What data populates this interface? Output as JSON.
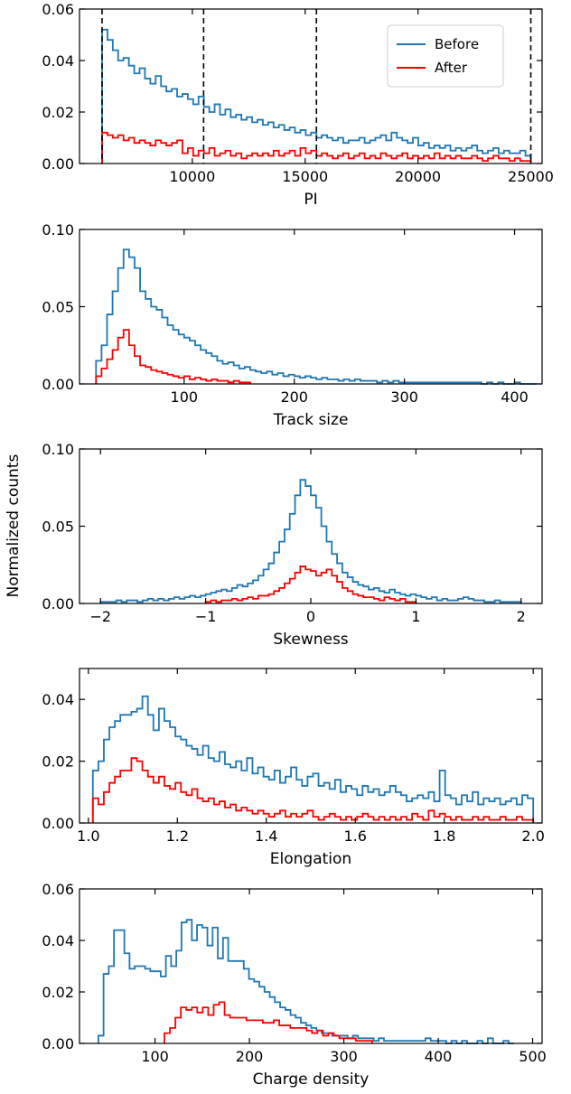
{
  "figure": {
    "ylabel": "Normalized counts"
  },
  "colors": {
    "before": "#1f77b4",
    "after": "#ff0000",
    "threshold": "#000000"
  },
  "legend": {
    "placement": "top-right of first panel",
    "entries": [
      {
        "label": "Before",
        "color": "#1f77b4"
      },
      {
        "label": "After",
        "color": "#ff0000"
      }
    ]
  },
  "chart_data": [
    {
      "type": "histogram-step",
      "xlabel": "PI",
      "xlim": [
        5000,
        25500
      ],
      "ylim": [
        0,
        0.06
      ],
      "xticks": [
        10000,
        15000,
        20000,
        25000
      ],
      "xtick_labels": [
        "10000",
        "15000",
        "20000",
        "25000"
      ],
      "yticks": [
        0,
        0.02,
        0.04,
        0.06
      ],
      "ytick_labels": [
        "0.00",
        "0.02",
        "0.04",
        "0.06"
      ],
      "vlines": [
        6000,
        10500,
        15500,
        25000
      ],
      "series": [
        {
          "name": "Before",
          "bins": [
            6000,
            25000
          ],
          "values": [
            0.052,
            0.048,
            0.044,
            0.04,
            0.041,
            0.038,
            0.035,
            0.037,
            0.033,
            0.031,
            0.034,
            0.03,
            0.028,
            0.029,
            0.026,
            0.027,
            0.025,
            0.023,
            0.026,
            0.022,
            0.02,
            0.023,
            0.019,
            0.021,
            0.018,
            0.019,
            0.017,
            0.018,
            0.016,
            0.017,
            0.015,
            0.016,
            0.014,
            0.015,
            0.013,
            0.014,
            0.012,
            0.013,
            0.011,
            0.012,
            0.01,
            0.011,
            0.01,
            0.009,
            0.01,
            0.008,
            0.009,
            0.009,
            0.01,
            0.008,
            0.009,
            0.01,
            0.011,
            0.009,
            0.012,
            0.01,
            0.009,
            0.008,
            0.01,
            0.007,
            0.008,
            0.006,
            0.007,
            0.006,
            0.007,
            0.005,
            0.006,
            0.005,
            0.006,
            0.007,
            0.005,
            0.004,
            0.005,
            0.006,
            0.004,
            0.005,
            0.004,
            0.004,
            0.005,
            0.003
          ]
        },
        {
          "name": "After",
          "bins": [
            6000,
            25000
          ],
          "values": [
            0.012,
            0.011,
            0.01,
            0.011,
            0.009,
            0.01,
            0.008,
            0.009,
            0.008,
            0.007,
            0.009,
            0.008,
            0.007,
            0.008,
            0.009,
            0.004,
            0.006,
            0.003,
            0.005,
            0.004,
            0.006,
            0.003,
            0.004,
            0.005,
            0.003,
            0.004,
            0.002,
            0.003,
            0.004,
            0.003,
            0.004,
            0.003,
            0.005,
            0.003,
            0.004,
            0.005,
            0.003,
            0.006,
            0.004,
            0.005,
            0.003,
            0.004,
            0.003,
            0.002,
            0.003,
            0.004,
            0.002,
            0.003,
            0.004,
            0.002,
            0.003,
            0.002,
            0.004,
            0.003,
            0.002,
            0.003,
            0.004,
            0.002,
            0.003,
            0.002,
            0.003,
            0.002,
            0.004,
            0.002,
            0.003,
            0.002,
            0.003,
            0.002,
            0.002,
            0.003,
            0.002,
            0.001,
            0.002,
            0.003,
            0.002,
            0.002,
            0.001,
            0.002,
            0.001,
            0.001
          ]
        }
      ]
    },
    {
      "type": "histogram-step",
      "xlabel": "Track size",
      "xlim": [
        5,
        425
      ],
      "ylim": [
        0,
        0.1
      ],
      "xticks": [
        100,
        200,
        300,
        400
      ],
      "xtick_labels": [
        "100",
        "200",
        "300",
        "400"
      ],
      "yticks": [
        0,
        0.05,
        0.1
      ],
      "ytick_labels": [
        "0.00",
        "0.05",
        "0.10"
      ],
      "series": [
        {
          "name": "Before",
          "bins": [
            20,
            420
          ],
          "values": [
            0.015,
            0.025,
            0.045,
            0.06,
            0.075,
            0.087,
            0.082,
            0.075,
            0.06,
            0.055,
            0.05,
            0.048,
            0.043,
            0.038,
            0.035,
            0.032,
            0.03,
            0.028,
            0.025,
            0.022,
            0.02,
            0.018,
            0.015,
            0.013,
            0.014,
            0.012,
            0.01,
            0.011,
            0.009,
            0.008,
            0.007,
            0.008,
            0.006,
            0.007,
            0.005,
            0.006,
            0.005,
            0.004,
            0.005,
            0.004,
            0.003,
            0.004,
            0.003,
            0.003,
            0.002,
            0.003,
            0.002,
            0.003,
            0.002,
            0.002,
            0.002,
            0.001,
            0.002,
            0.001,
            0.002,
            0.001,
            0.001,
            0.001,
            0.001,
            0.001,
            0.001,
            0.001,
            0.001,
            0.001,
            0.001,
            0.001,
            0.001,
            0.001,
            0.001,
            0.001,
            0.0,
            0.001,
            0.0,
            0.001,
            0.0,
            0.0,
            0.001,
            0.0,
            0.0,
            0.0
          ]
        },
        {
          "name": "After",
          "bins": [
            20,
            160
          ],
          "values": [
            0.005,
            0.01,
            0.016,
            0.022,
            0.03,
            0.035,
            0.025,
            0.018,
            0.012,
            0.011,
            0.009,
            0.008,
            0.007,
            0.006,
            0.005,
            0.004,
            0.005,
            0.003,
            0.004,
            0.003,
            0.002,
            0.003,
            0.002,
            0.002,
            0.001,
            0.002,
            0.001,
            0.001
          ]
        }
      ]
    },
    {
      "type": "histogram-step",
      "xlabel": "Skewness",
      "xlim": [
        -2.2,
        2.2
      ],
      "ylim": [
        0,
        0.1
      ],
      "xticks": [
        -2,
        -1,
        0,
        1,
        2
      ],
      "xtick_labels": [
        "−2",
        "−1",
        "0",
        "1",
        "2"
      ],
      "yticks": [
        0,
        0.05,
        0.1
      ],
      "ytick_labels": [
        "0.00",
        "0.05",
        "0.10"
      ],
      "series": [
        {
          "name": "Before",
          "bins": [
            -2,
            2
          ],
          "values": [
            0.001,
            0.001,
            0.001,
            0.002,
            0.001,
            0.002,
            0.002,
            0.001,
            0.002,
            0.003,
            0.002,
            0.003,
            0.002,
            0.003,
            0.004,
            0.003,
            0.004,
            0.005,
            0.004,
            0.005,
            0.006,
            0.007,
            0.008,
            0.009,
            0.008,
            0.01,
            0.012,
            0.011,
            0.013,
            0.015,
            0.018,
            0.022,
            0.026,
            0.033,
            0.04,
            0.048,
            0.058,
            0.07,
            0.08,
            0.076,
            0.07,
            0.062,
            0.05,
            0.04,
            0.032,
            0.026,
            0.02,
            0.017,
            0.014,
            0.012,
            0.011,
            0.009,
            0.01,
            0.008,
            0.007,
            0.009,
            0.007,
            0.006,
            0.005,
            0.006,
            0.005,
            0.004,
            0.003,
            0.004,
            0.002,
            0.003,
            0.002,
            0.002,
            0.003,
            0.004,
            0.003,
            0.002,
            0.002,
            0.001,
            0.001,
            0.002,
            0.001,
            0.001,
            0.001,
            0.001
          ]
        },
        {
          "name": "After",
          "bins": [
            -1,
            1
          ],
          "values": [
            0.001,
            0.002,
            0.001,
            0.002,
            0.002,
            0.003,
            0.002,
            0.003,
            0.004,
            0.003,
            0.005,
            0.005,
            0.006,
            0.008,
            0.01,
            0.013,
            0.016,
            0.02,
            0.024,
            0.022,
            0.021,
            0.018,
            0.02,
            0.022,
            0.018,
            0.014,
            0.01,
            0.008,
            0.006,
            0.005,
            0.004,
            0.004,
            0.003,
            0.002,
            0.004,
            0.003,
            0.002,
            0.003,
            0.001,
            0.001
          ]
        }
      ]
    },
    {
      "type": "histogram-step",
      "xlabel": "Elongation",
      "xlim": [
        0.98,
        2.02
      ],
      "ylim": [
        0,
        0.05
      ],
      "xticks": [
        1.0,
        1.2,
        1.4,
        1.6,
        1.8,
        2.0
      ],
      "xtick_labels": [
        "1.0",
        "1.2",
        "1.4",
        "1.6",
        "1.8",
        "2.0"
      ],
      "yticks": [
        0,
        0.02,
        0.04
      ],
      "ytick_labels": [
        "0.00",
        "0.02",
        "0.04"
      ],
      "series": [
        {
          "name": "Before",
          "bins": [
            1.01,
            2.0
          ],
          "values": [
            0.017,
            0.02,
            0.027,
            0.031,
            0.033,
            0.035,
            0.035,
            0.036,
            0.037,
            0.041,
            0.035,
            0.03,
            0.037,
            0.033,
            0.031,
            0.028,
            0.027,
            0.025,
            0.024,
            0.022,
            0.025,
            0.021,
            0.02,
            0.023,
            0.019,
            0.018,
            0.02,
            0.017,
            0.021,
            0.016,
            0.018,
            0.015,
            0.014,
            0.017,
            0.013,
            0.015,
            0.018,
            0.014,
            0.012,
            0.015,
            0.016,
            0.012,
            0.013,
            0.011,
            0.014,
            0.01,
            0.012,
            0.011,
            0.009,
            0.012,
            0.01,
            0.011,
            0.009,
            0.01,
            0.012,
            0.01,
            0.009,
            0.007,
            0.008,
            0.009,
            0.008,
            0.01,
            0.007,
            0.017,
            0.009,
            0.008,
            0.006,
            0.009,
            0.007,
            0.01,
            0.006,
            0.008,
            0.007,
            0.008,
            0.006,
            0.007,
            0.008,
            0.006,
            0.009,
            0.008
          ]
        },
        {
          "name": "After",
          "bins": [
            1.01,
            2.0
          ],
          "values": [
            0.008,
            0.006,
            0.01,
            0.013,
            0.015,
            0.017,
            0.017,
            0.021,
            0.02,
            0.017,
            0.015,
            0.013,
            0.015,
            0.012,
            0.011,
            0.013,
            0.01,
            0.009,
            0.011,
            0.008,
            0.007,
            0.008,
            0.006,
            0.007,
            0.005,
            0.006,
            0.004,
            0.005,
            0.004,
            0.003,
            0.004,
            0.003,
            0.002,
            0.003,
            0.004,
            0.002,
            0.003,
            0.002,
            0.003,
            0.004,
            0.002,
            0.001,
            0.002,
            0.003,
            0.002,
            0.001,
            0.002,
            0.001,
            0.002,
            0.003,
            0.002,
            0.001,
            0.002,
            0.001,
            0.002,
            0.001,
            0.002,
            0.001,
            0.003,
            0.002,
            0.001,
            0.004,
            0.002,
            0.003,
            0.002,
            0.001,
            0.002,
            0.001,
            0.001,
            0.002,
            0.001,
            0.002,
            0.001,
            0.001,
            0.002,
            0.001,
            0.001,
            0.002,
            0.001,
            0.001
          ]
        }
      ]
    },
    {
      "type": "histogram-step",
      "xlabel": "Charge density",
      "xlim": [
        20,
        510
      ],
      "ylim": [
        0,
        0.06
      ],
      "xticks": [
        100,
        200,
        300,
        400,
        500
      ],
      "xtick_labels": [
        "100",
        "200",
        "300",
        "400",
        "500"
      ],
      "yticks": [
        0,
        0.02,
        0.04,
        0.06
      ],
      "ytick_labels": [
        "0.00",
        "0.02",
        "0.04",
        "0.06"
      ],
      "series": [
        {
          "name": "Before",
          "bins": [
            40,
            480
          ],
          "values": [
            0.003,
            0.027,
            0.03,
            0.044,
            0.044,
            0.035,
            0.029,
            0.03,
            0.03,
            0.029,
            0.028,
            0.028,
            0.026,
            0.034,
            0.03,
            0.036,
            0.047,
            0.048,
            0.04,
            0.046,
            0.045,
            0.038,
            0.045,
            0.033,
            0.041,
            0.032,
            0.032,
            0.032,
            0.029,
            0.025,
            0.024,
            0.022,
            0.02,
            0.018,
            0.016,
            0.014,
            0.013,
            0.011,
            0.01,
            0.008,
            0.007,
            0.006,
            0.005,
            0.004,
            0.004,
            0.003,
            0.003,
            0.003,
            0.002,
            0.003,
            0.002,
            0.002,
            0.002,
            0.001,
            0.002,
            0.001,
            0.001,
            0.001,
            0.001,
            0.001,
            0.001,
            0.001,
            0.001,
            0.002,
            0.001,
            0.001,
            0.001,
            0.0,
            0.001,
            0.0,
            0.001,
            0.0,
            0.0,
            0.001,
            0.0,
            0.002,
            0.0,
            0.0,
            0.001,
            0.0
          ]
        },
        {
          "name": "After",
          "bins": [
            110,
            330
          ],
          "values": [
            0.004,
            0.006,
            0.01,
            0.014,
            0.013,
            0.014,
            0.012,
            0.014,
            0.011,
            0.015,
            0.016,
            0.011,
            0.01,
            0.01,
            0.01,
            0.009,
            0.009,
            0.009,
            0.008,
            0.008,
            0.009,
            0.007,
            0.007,
            0.006,
            0.006,
            0.006,
            0.005,
            0.004,
            0.005,
            0.003,
            0.004,
            0.003,
            0.002,
            0.002,
            0.002,
            0.001,
            0.001,
            0.001
          ]
        }
      ]
    }
  ]
}
